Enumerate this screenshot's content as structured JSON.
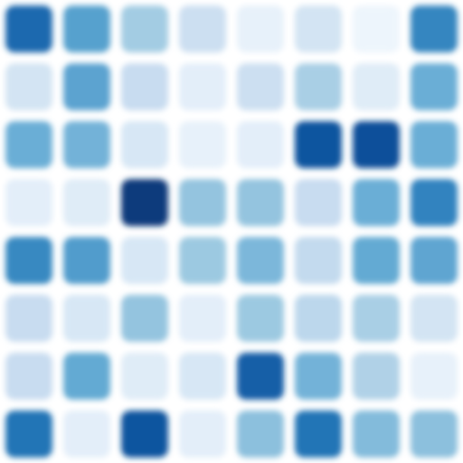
{
  "chart_data": {
    "type": "heatmap",
    "rows": 8,
    "cols": 8,
    "color_scale": {
      "min": 0,
      "max": 1,
      "colors": [
        "#f7fbff",
        "#deebf7",
        "#c6dbef",
        "#9ecae1",
        "#6baed6",
        "#4292c6",
        "#2171b5",
        "#08519c",
        "#08306b"
      ]
    },
    "values": [
      [
        0.78,
        0.56,
        0.36,
        0.22,
        0.08,
        0.18,
        0.05,
        0.67
      ],
      [
        0.18,
        0.55,
        0.24,
        0.1,
        0.22,
        0.34,
        0.12,
        0.5
      ],
      [
        0.5,
        0.48,
        0.16,
        0.08,
        0.1,
        0.86,
        0.88,
        0.5
      ],
      [
        0.1,
        0.12,
        0.96,
        0.4,
        0.4,
        0.24,
        0.5,
        0.68
      ],
      [
        0.66,
        0.58,
        0.16,
        0.38,
        0.46,
        0.26,
        0.52,
        0.54
      ],
      [
        0.24,
        0.16,
        0.4,
        0.1,
        0.38,
        0.28,
        0.34,
        0.18
      ],
      [
        0.24,
        0.52,
        0.12,
        0.16,
        0.82,
        0.48,
        0.32,
        0.08
      ],
      [
        0.74,
        0.1,
        0.86,
        0.1,
        0.42,
        0.74,
        0.44,
        0.42
      ]
    ],
    "title": "",
    "xlabel": "",
    "ylabel": "",
    "grid": false,
    "legend": "none"
  }
}
